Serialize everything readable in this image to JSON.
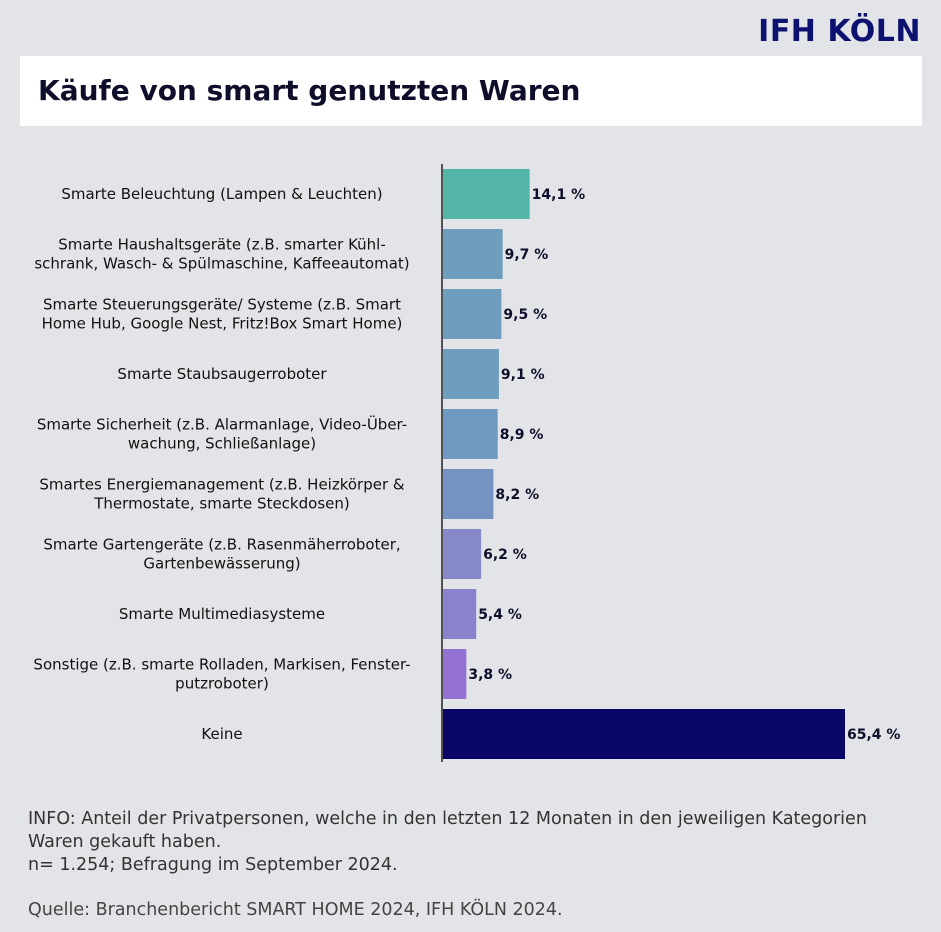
{
  "brand": {
    "logo_text": "IFH KÖLN"
  },
  "header": {
    "title": "Käufe von smart genutzten Waren"
  },
  "chart_data": {
    "type": "bar",
    "orientation": "horizontal",
    "title": "Käufe von smart genutzten Waren",
    "value_unit": "%",
    "xlim": [
      0,
      70
    ],
    "categories": [
      [
        "Smarte Beleuchtung (Lampen & Leuchten)"
      ],
      [
        "Smarte Haushaltsgeräte (z.B. smarter Kühl-",
        "schrank, Wasch- & Spülmaschine, Kaffeeautomat)"
      ],
      [
        "Smarte Steuerungsgeräte/ Systeme (z.B. Smart",
        "Home Hub, Google Nest, Fritz!Box Smart Home)"
      ],
      [
        "Smarte Staubsaugerroboter"
      ],
      [
        "Smarte Sicherheit (z.B. Alarmanlage, Video-Über-",
        "wachung, Schließanlage)"
      ],
      [
        "Smartes Energiemanagement (z.B. Heizkörper &",
        "Thermostate, smarte Steckdosen)"
      ],
      [
        "Smarte Gartengeräte (z.B. Rasenmäherroboter,",
        "Gartenbewässerung)"
      ],
      [
        "Smarte Multimediasysteme"
      ],
      [
        "Sonstige (z.B. smarte Rolladen, Markisen, Fenster-",
        "putzroboter)"
      ],
      [
        "Keine"
      ]
    ],
    "values": [
      14.1,
      9.7,
      9.5,
      9.1,
      8.9,
      8.2,
      6.2,
      5.4,
      3.8,
      65.4
    ],
    "value_labels": [
      "14,1 %",
      "9,7 %",
      "9,5 %",
      "9,1 %",
      "8,9 %",
      "8,2 %",
      "6,2 %",
      "5,4 %",
      "3,8 %",
      "65,4 %"
    ],
    "colors": [
      "#52b5a7",
      "#6e9dbd",
      "#6e9dbd",
      "#6e9dbd",
      "#6f99c0",
      "#7493c2",
      "#8788c9",
      "#8a82cb",
      "#9472d2",
      "#0a0668"
    ]
  },
  "footer": {
    "info_line1": "INFO: Anteil der Privatpersonen, welche in den letzten 12 Monaten in den jeweiligen Kategorien",
    "info_line2": "Waren gekauft haben.",
    "info_line3": "n= 1.254; Befragung im September 2024.",
    "source": "Quelle: Branchenbericht SMART HOME 2024, IFH KÖLN 2024."
  }
}
